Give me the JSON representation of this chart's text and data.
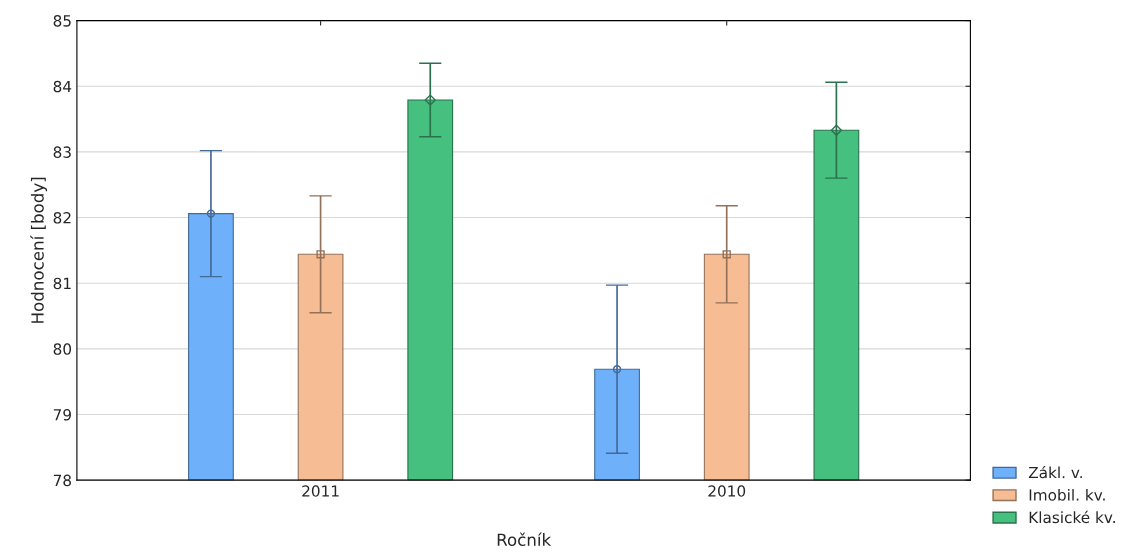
{
  "chart_data": {
    "type": "bar",
    "xlabel": "Ročník",
    "ylabel": "Hodnocení [body]",
    "categories": [
      "2011",
      "2010"
    ],
    "series": [
      {
        "name": "Zákl. v.",
        "color": "#6fb0fb",
        "values": [
          82.06,
          79.69
        ],
        "errors": [
          0.96,
          1.28
        ],
        "marker": "circle"
      },
      {
        "name": "Imobil. kv.",
        "color": "#f6bd94",
        "values": [
          81.44,
          81.44
        ],
        "errors": [
          0.89,
          0.74
        ],
        "marker": "square"
      },
      {
        "name": "Klasické kv.",
        "color": "#45c07f",
        "values": [
          83.79,
          83.33
        ],
        "errors": [
          0.56,
          0.73
        ],
        "marker": "diamond"
      }
    ],
    "ylim": [
      78,
      85
    ],
    "yticks": [
      78,
      79,
      80,
      81,
      82,
      83,
      84,
      85
    ],
    "grid": "y",
    "legend": "bottom right"
  }
}
